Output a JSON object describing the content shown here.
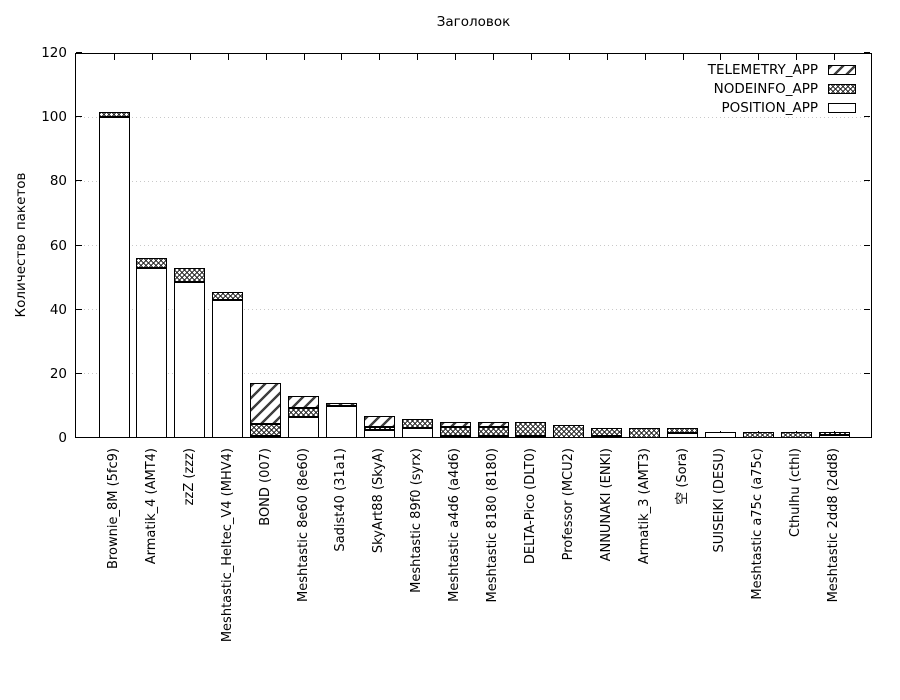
{
  "chart_data": {
    "type": "bar",
    "stacked": true,
    "title": "Заголовок",
    "ylabel": "Количество пакетов",
    "xlabel": "",
    "ylim": [
      0,
      120
    ],
    "yticks": [
      0,
      20,
      40,
      60,
      80,
      100,
      120
    ],
    "grid": "horizontal-dotted",
    "legend_position": "top-right-inside",
    "categories": [
      "Brownie_8M (5fc9)",
      "Armatik_4 (AMT4)",
      "zzZ (zzz)",
      "Meshtastic_Heltec_V4 (MHV4)",
      "BOND (007)",
      "Meshtastic 8e60 (8e60)",
      "Sadist40 (31a1)",
      "SkyArt88 (SkyA)",
      "Meshtastic 89f0 (syrx)",
      "Meshtastic a4d6 (a4d6)",
      "Meshtastic 8180 (8180)",
      "DELTA-Pico (DLT0)",
      "Professor (MCU2)",
      "ANNUNAKI (ENKI)",
      "Armatik_3 (AMT3)",
      "空 (Sora)",
      "SUISEIKI (DESU)",
      "Meshtastic a75c (a75c)",
      "Cthulhu (cthl)",
      "Meshtastic 2dd8 (2dd8)"
    ],
    "series": [
      {
        "name": "POSITION_APP",
        "pattern": "plain",
        "values": [
          100,
          53,
          48.5,
          43,
          0.5,
          6.5,
          10,
          2.5,
          3,
          0.5,
          0.7,
          0.5,
          0,
          0.5,
          0,
          1.5,
          2,
          0,
          0,
          1
        ]
      },
      {
        "name": "NODEINFO_APP",
        "pattern": "crosshatch",
        "values": [
          1.5,
          3,
          4.5,
          2.5,
          4,
          3,
          0,
          1,
          3,
          3,
          2.8,
          4.5,
          4,
          2.5,
          3,
          1.5,
          0,
          2,
          2,
          1
        ]
      },
      {
        "name": "TELEMETRY_APP",
        "pattern": "diagonal",
        "values": [
          0,
          0,
          0,
          0,
          12.5,
          3.5,
          1,
          3.5,
          0,
          1.5,
          1.5,
          0,
          0,
          0,
          0,
          0,
          0,
          0,
          0,
          0
        ]
      }
    ],
    "legend": [
      {
        "label": "TELEMETRY_APP",
        "pattern": "diagonal"
      },
      {
        "label": "NODEINFO_APP",
        "pattern": "crosshatch"
      },
      {
        "label": "POSITION_APP",
        "pattern": "plain"
      }
    ],
    "colors": {
      "foreground": "#000000",
      "background": "#ffffff",
      "grid": "#c9c9c9",
      "hatch": "#3f3f3f"
    }
  }
}
